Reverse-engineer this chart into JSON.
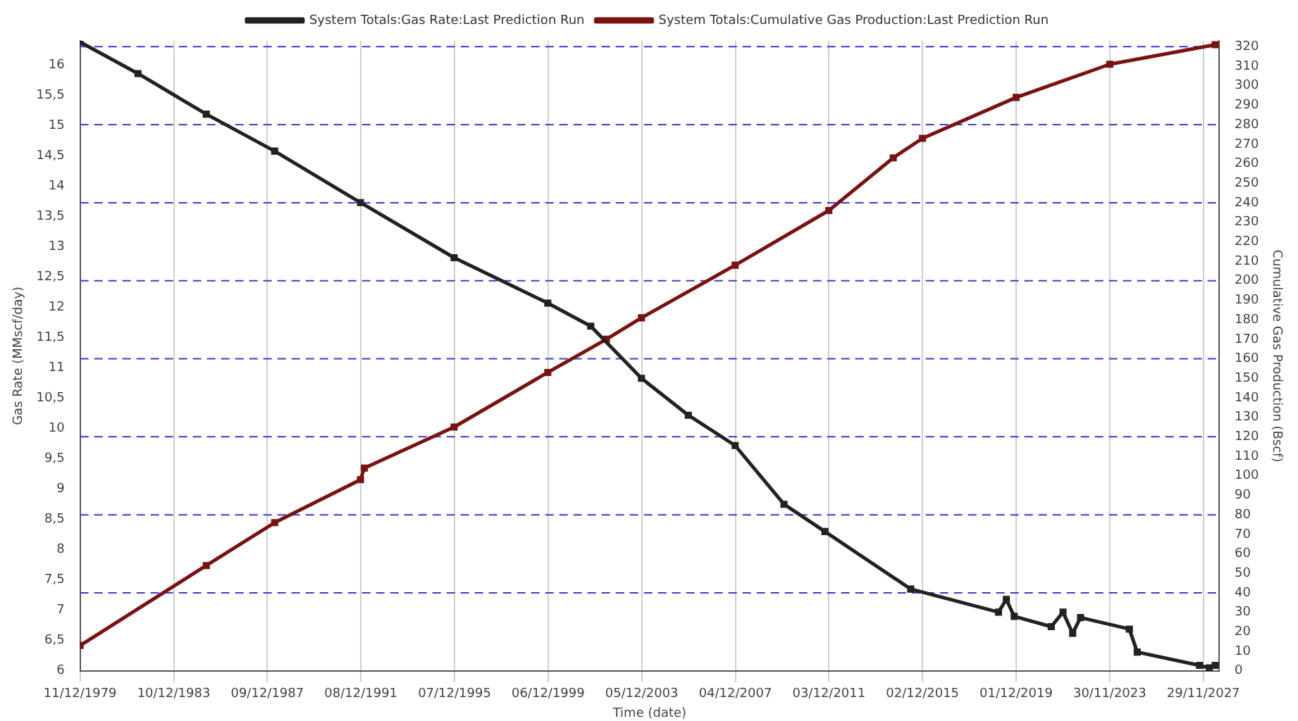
{
  "chart_data": {
    "type": "line",
    "xlabel": "Time (date)",
    "ylabel": "Gas Rate (MMscf/day)",
    "y2label": "Cumulative Gas Production (Bscf)",
    "xlim": [
      "1979-12-11",
      "2028-08"
    ],
    "xticks": [
      {
        "value": "1979-12-11",
        "label": "11/12/1979"
      },
      {
        "value": "1983-12-10",
        "label": "10/12/1983"
      },
      {
        "value": "1987-12-09",
        "label": "09/12/1987"
      },
      {
        "value": "1991-12-08",
        "label": "08/12/1991"
      },
      {
        "value": "1995-12-07",
        "label": "07/12/1995"
      },
      {
        "value": "1999-12-06",
        "label": "06/12/1999"
      },
      {
        "value": "2003-12-05",
        "label": "05/12/2003"
      },
      {
        "value": "2007-12-04",
        "label": "04/12/2007"
      },
      {
        "value": "2011-12-03",
        "label": "03/12/2011"
      },
      {
        "value": "2015-12-02",
        "label": "02/12/2015"
      },
      {
        "value": "2019-12-01",
        "label": "01/12/2019"
      },
      {
        "value": "2023-11-30",
        "label": "30/11/2023"
      },
      {
        "value": "2027-11-29",
        "label": "29/11/2027"
      }
    ],
    "ylim": [
      6,
      16.4
    ],
    "yticks": [
      6,
      {
        "value": 6.5,
        "label": "6,5"
      },
      7,
      {
        "value": 7.5,
        "label": "7,5"
      },
      8,
      {
        "value": 8.5,
        "label": "8,5"
      },
      9,
      {
        "value": 9.5,
        "label": "9,5"
      },
      10,
      {
        "value": 10.5,
        "label": "10,5"
      },
      11,
      {
        "value": 11.5,
        "label": "11,5"
      },
      12,
      {
        "value": 12.5,
        "label": "12,5"
      },
      13,
      {
        "value": 13.5,
        "label": "13,5"
      },
      14,
      {
        "value": 14.5,
        "label": "14,5"
      },
      15,
      {
        "value": 15.5,
        "label": "15,5"
      },
      16
    ],
    "y2lim": [
      0,
      323
    ],
    "y2ticks": [
      0,
      10,
      20,
      30,
      40,
      50,
      60,
      70,
      80,
      90,
      100,
      110,
      120,
      130,
      140,
      150,
      160,
      170,
      180,
      190,
      200,
      210,
      220,
      230,
      240,
      250,
      260,
      270,
      280,
      290,
      300,
      310,
      320
    ],
    "grid": "x",
    "legend": "top",
    "marker": "square",
    "line_style": "solid",
    "ref_lines": [
      {
        "axis": "y2",
        "value": 40,
        "color": "#3b3bd6",
        "line_style": "dashed"
      },
      {
        "axis": "y2",
        "value": 80,
        "color": "#3b3bd6",
        "line_style": "dashed"
      },
      {
        "axis": "y2",
        "value": 120,
        "color": "#3b3bd6",
        "line_style": "dashed"
      },
      {
        "axis": "y2",
        "value": 160,
        "color": "#3b3bd6",
        "line_style": "dashed"
      },
      {
        "axis": "y2",
        "value": 200,
        "color": "#3b3bd6",
        "line_style": "dashed"
      },
      {
        "axis": "y2",
        "value": 240,
        "color": "#3b3bd6",
        "line_style": "dashed"
      },
      {
        "axis": "y2",
        "value": 280,
        "color": "#3b3bd6",
        "line_style": "dashed"
      },
      {
        "axis": "y2",
        "value": 320,
        "color": "#3b3bd6",
        "line_style": "dashed"
      }
    ],
    "series": [
      {
        "name": "System Totals:Gas Rate:Last Prediction Run",
        "color": "#222222",
        "x": [
          "1979-12-11",
          "1982-06",
          "1985-05",
          "1988-04",
          "1991-12",
          "1995-12",
          "1999-12",
          "2001-10",
          "2003-12",
          "2005-12",
          "2007-12",
          "2010-01",
          "2011-10",
          "2015-06",
          "2019-03",
          "2019-07",
          "2019-11",
          "2021-06",
          "2021-12",
          "2022-05",
          "2022-09",
          "2024-10",
          "2025-02",
          "2027-10",
          "2028-03",
          "2028-06"
        ],
        "values": [
          16.38,
          15.86,
          15.19,
          14.58,
          13.73,
          12.82,
          12.07,
          11.69,
          10.83,
          10.22,
          9.72,
          8.75,
          8.3,
          7.35,
          6.97,
          7.18,
          6.9,
          6.73,
          6.97,
          6.62,
          6.88,
          6.69,
          6.31,
          6.09,
          6.05,
          6.09
        ]
      },
      {
        "name": "System Totals:Cumulative Gas Production:Last Prediction Run",
        "color": "#7a1212",
        "axis": "y2",
        "x": [
          "1979-12-11",
          "1985-05",
          "1988-04",
          "1991-12",
          "1992-02",
          "1995-12",
          "1999-12",
          "2002-06",
          "2003-12",
          "2007-12",
          "2011-12",
          "2014-09",
          "2015-12",
          "2019-12",
          "2023-12",
          "2028-06"
        ],
        "values": [
          13,
          54,
          76,
          98,
          104,
          125,
          153,
          170,
          181,
          208,
          236,
          263,
          273,
          294,
          311,
          321
        ]
      }
    ]
  }
}
